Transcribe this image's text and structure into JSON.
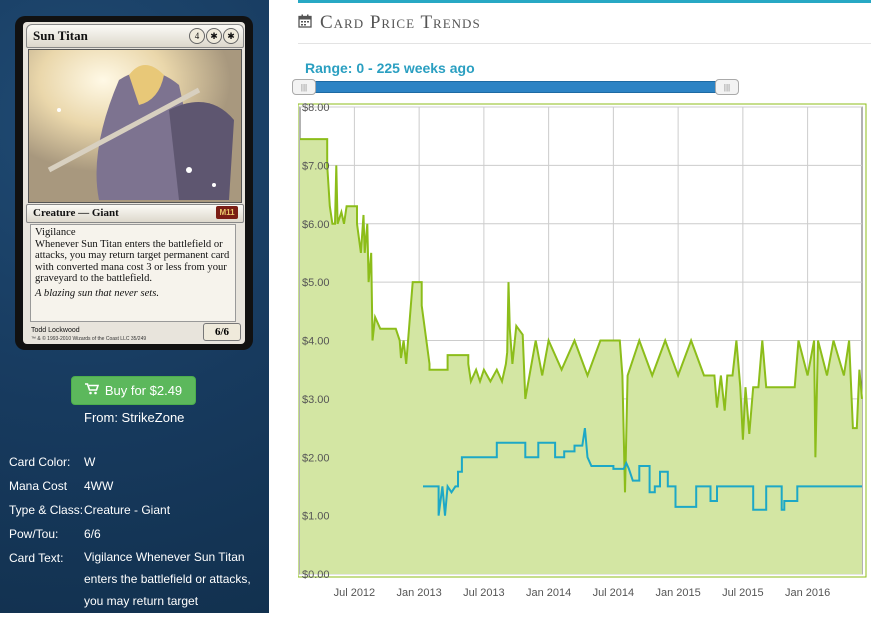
{
  "card": {
    "name": "Sun Titan",
    "mana_symbols": [
      "4",
      "✱",
      "✱"
    ],
    "type_line": "Creature — Giant",
    "set_symbol": "M11",
    "rules_keyword": "Vigilance",
    "rules_text": "Whenever Sun Titan enters the battlefield or attacks, you may return target permanent card with converted mana cost 3 or less from your graveyard to the battlefield.",
    "flavor_text": "A blazing sun that never sets.",
    "artist": "Todd Lockwood",
    "copyright": "™ & © 1993-2010 Wizards of the Coast LLC 35/249",
    "power_toughness": "6/6"
  },
  "buy": {
    "label": "Buy for $2.49",
    "icon": "shopping-cart-icon",
    "color": "#5cb85c"
  },
  "from": "From: StrikeZone",
  "info": [
    {
      "key": "Card Color:",
      "value": "W"
    },
    {
      "key": "Mana Cost",
      "value": "4WW"
    },
    {
      "key": "Type & Class:",
      "value": "Creature - Giant"
    },
    {
      "key": "Pow/Tou:",
      "value": "6/6"
    },
    {
      "key": "Card Text:",
      "value": "Vigilance Whenever Sun Titan enters the battlefield or attacks, you may return target"
    }
  ],
  "header": {
    "icon": "calendar-icon",
    "title": "Card Price Trends"
  },
  "range": {
    "label": "Range: 0 - 225 weeks ago",
    "min_weeks": 0,
    "max_weeks": 225
  },
  "colors": {
    "accent": "#27a8c4",
    "slider": "#2c83c4",
    "green": "#8cbd1a",
    "green_fill": "#d3e6a3",
    "blue": "#1da8c6"
  },
  "chart_data": {
    "type": "area",
    "y_axis": {
      "min": 0,
      "max": 8,
      "tick_labels": [
        "$0.00",
        "$1.00",
        "$2.00",
        "$3.00",
        "$4.00",
        "$5.00",
        "$6.00",
        "$7.00",
        "$8.00"
      ]
    },
    "x_axis": {
      "start": 2012.08,
      "end": 2016.42,
      "tick_labels": [
        "Jul 2012",
        "Jan 2013",
        "Jul 2013",
        "Jan 2014",
        "Jul 2014",
        "Jan 2015",
        "Jul 2015",
        "Jan 2016"
      ],
      "tick_positions": [
        2012.5,
        2013.0,
        2013.5,
        2014.0,
        2014.5,
        2015.0,
        2015.5,
        2016.0
      ]
    },
    "grid": true,
    "series": [
      {
        "style": "area",
        "color": "#8cbd1a",
        "points": [
          [
            2012.08,
            7.45
          ],
          [
            2012.29,
            7.45
          ],
          [
            2012.29,
            7.0
          ],
          [
            2012.31,
            6.3
          ],
          [
            2012.33,
            6.0
          ],
          [
            2012.35,
            6.0
          ],
          [
            2012.36,
            7.0
          ],
          [
            2012.37,
            6.0
          ],
          [
            2012.4,
            6.2
          ],
          [
            2012.42,
            6.0
          ],
          [
            2012.44,
            6.3
          ],
          [
            2012.52,
            6.3
          ],
          [
            2012.52,
            6.0
          ],
          [
            2012.55,
            5.5
          ],
          [
            2012.57,
            6.15
          ],
          [
            2012.58,
            5.5
          ],
          [
            2012.6,
            6.0
          ],
          [
            2012.61,
            5.0
          ],
          [
            2012.63,
            5.5
          ],
          [
            2012.64,
            4.0
          ],
          [
            2012.66,
            4.4
          ],
          [
            2012.7,
            4.2
          ],
          [
            2012.75,
            4.2
          ],
          [
            2012.82,
            4.2
          ],
          [
            2012.85,
            4.0
          ],
          [
            2012.86,
            3.7
          ],
          [
            2012.88,
            4.0
          ],
          [
            2012.9,
            3.6
          ],
          [
            2012.95,
            5.0
          ],
          [
            2013.02,
            5.0
          ],
          [
            2013.02,
            4.6
          ],
          [
            2013.05,
            4.1
          ],
          [
            2013.08,
            3.6
          ],
          [
            2013.08,
            3.5
          ],
          [
            2013.22,
            3.5
          ],
          [
            2013.22,
            3.75
          ],
          [
            2013.38,
            3.75
          ],
          [
            2013.38,
            3.6
          ],
          [
            2013.4,
            3.3
          ],
          [
            2013.44,
            3.5
          ],
          [
            2013.47,
            3.3
          ],
          [
            2013.5,
            3.5
          ],
          [
            2013.55,
            3.3
          ],
          [
            2013.6,
            3.5
          ],
          [
            2013.64,
            3.3
          ],
          [
            2013.67,
            3.6
          ],
          [
            2013.68,
            3.8
          ],
          [
            2013.69,
            5.0
          ],
          [
            2013.7,
            4.2
          ],
          [
            2013.72,
            3.6
          ],
          [
            2013.75,
            4.25
          ],
          [
            2013.8,
            4.1
          ],
          [
            2013.82,
            3.0
          ],
          [
            2013.86,
            3.5
          ],
          [
            2013.9,
            4.0
          ],
          [
            2013.95,
            3.4
          ],
          [
            2014.0,
            4.0
          ],
          [
            2014.1,
            3.5
          ],
          [
            2014.2,
            4.0
          ],
          [
            2014.3,
            3.4
          ],
          [
            2014.4,
            4.0
          ],
          [
            2014.55,
            4.0
          ],
          [
            2014.57,
            3.4
          ],
          [
            2014.59,
            1.4
          ],
          [
            2014.61,
            3.4
          ],
          [
            2014.7,
            4.0
          ],
          [
            2014.8,
            3.4
          ],
          [
            2014.9,
            4.0
          ],
          [
            2015.0,
            3.4
          ],
          [
            2015.1,
            4.0
          ],
          [
            2015.2,
            3.4
          ],
          [
            2015.28,
            3.4
          ],
          [
            2015.3,
            2.85
          ],
          [
            2015.33,
            3.4
          ],
          [
            2015.36,
            2.8
          ],
          [
            2015.38,
            3.4
          ],
          [
            2015.42,
            3.4
          ],
          [
            2015.45,
            4.0
          ],
          [
            2015.48,
            3.2
          ],
          [
            2015.5,
            2.3
          ],
          [
            2015.52,
            3.2
          ],
          [
            2015.55,
            2.4
          ],
          [
            2015.58,
            3.2
          ],
          [
            2015.62,
            3.2
          ],
          [
            2015.65,
            4.0
          ],
          [
            2015.68,
            3.2
          ],
          [
            2015.9,
            3.2
          ],
          [
            2015.93,
            4.0
          ],
          [
            2016.0,
            3.4
          ],
          [
            2016.05,
            4.0
          ],
          [
            2016.06,
            2.0
          ],
          [
            2016.08,
            4.0
          ],
          [
            2016.15,
            3.4
          ],
          [
            2016.2,
            4.0
          ],
          [
            2016.28,
            3.4
          ],
          [
            2016.32,
            4.0
          ],
          [
            2016.35,
            2.5
          ],
          [
            2016.38,
            2.5
          ],
          [
            2016.4,
            3.5
          ],
          [
            2016.42,
            3.0
          ]
        ]
      },
      {
        "style": "line",
        "color": "#1da8c6",
        "points": [
          [
            2013.03,
            1.5
          ],
          [
            2013.15,
            1.5
          ],
          [
            2013.15,
            1.0
          ],
          [
            2013.18,
            1.5
          ],
          [
            2013.2,
            1.0
          ],
          [
            2013.22,
            1.5
          ],
          [
            2013.25,
            1.4
          ],
          [
            2013.28,
            1.5
          ],
          [
            2013.3,
            1.5
          ],
          [
            2013.3,
            1.75
          ],
          [
            2013.33,
            1.75
          ],
          [
            2013.33,
            2.0
          ],
          [
            2013.6,
            2.0
          ],
          [
            2013.6,
            2.25
          ],
          [
            2013.82,
            2.25
          ],
          [
            2013.82,
            2.0
          ],
          [
            2013.92,
            2.0
          ],
          [
            2013.92,
            2.25
          ],
          [
            2014.05,
            2.25
          ],
          [
            2014.05,
            2.0
          ],
          [
            2014.12,
            2.0
          ],
          [
            2014.12,
            2.1
          ],
          [
            2014.2,
            2.1
          ],
          [
            2014.2,
            2.2
          ],
          [
            2014.26,
            2.2
          ],
          [
            2014.28,
            2.5
          ],
          [
            2014.3,
            2.0
          ],
          [
            2014.33,
            1.85
          ],
          [
            2014.5,
            1.85
          ],
          [
            2014.5,
            1.8
          ],
          [
            2014.58,
            1.8
          ],
          [
            2014.6,
            1.9
          ],
          [
            2014.62,
            1.8
          ],
          [
            2014.65,
            1.6
          ],
          [
            2014.7,
            1.6
          ],
          [
            2014.7,
            1.85
          ],
          [
            2014.78,
            1.85
          ],
          [
            2014.78,
            1.4
          ],
          [
            2014.82,
            1.4
          ],
          [
            2014.82,
            1.5
          ],
          [
            2014.86,
            1.5
          ],
          [
            2014.86,
            1.75
          ],
          [
            2014.92,
            1.75
          ],
          [
            2014.92,
            1.5
          ],
          [
            2014.98,
            1.5
          ],
          [
            2014.98,
            1.15
          ],
          [
            2015.14,
            1.15
          ],
          [
            2015.14,
            1.5
          ],
          [
            2015.25,
            1.5
          ],
          [
            2015.25,
            1.25
          ],
          [
            2015.3,
            1.25
          ],
          [
            2015.3,
            1.5
          ],
          [
            2015.58,
            1.5
          ],
          [
            2015.58,
            1.1
          ],
          [
            2015.68,
            1.1
          ],
          [
            2015.68,
            1.5
          ],
          [
            2015.8,
            1.5
          ],
          [
            2015.8,
            1.1
          ],
          [
            2015.82,
            1.1
          ],
          [
            2015.82,
            1.25
          ],
          [
            2015.92,
            1.25
          ],
          [
            2015.92,
            1.5
          ],
          [
            2016.42,
            1.5
          ]
        ]
      }
    ]
  }
}
